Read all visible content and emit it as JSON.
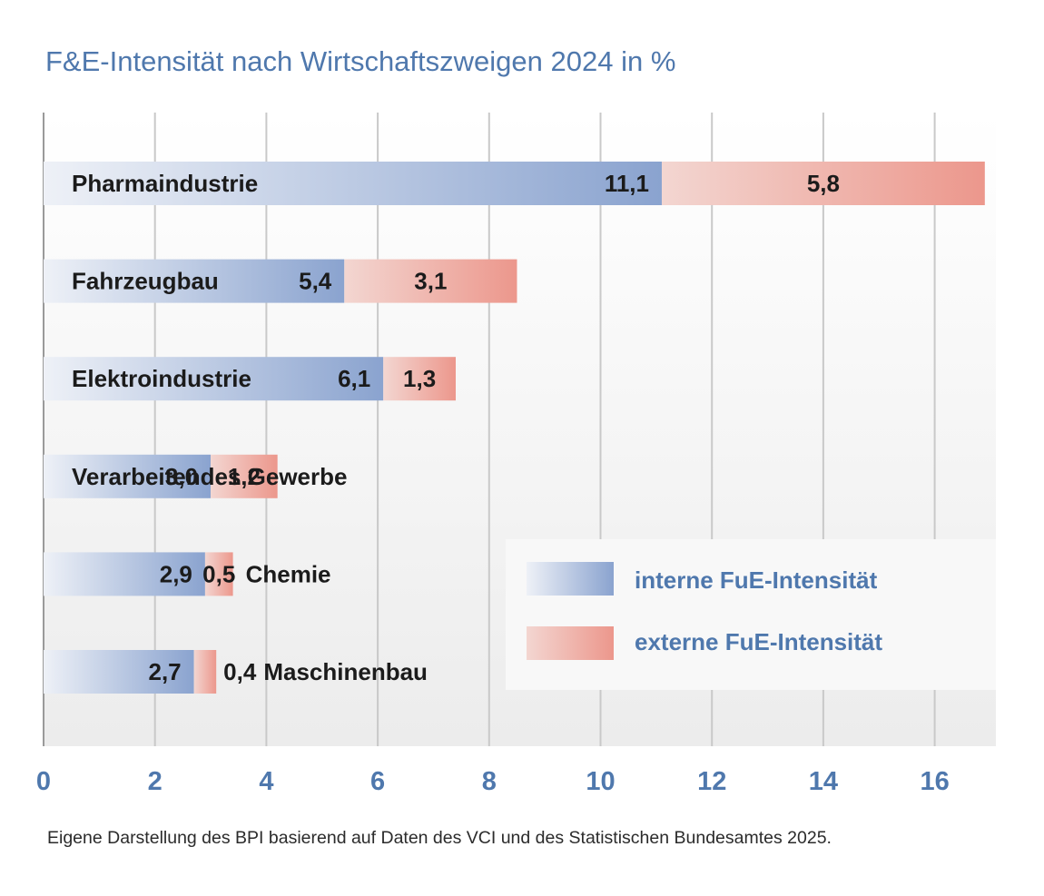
{
  "chart_data": {
    "type": "bar",
    "orientation": "horizontal",
    "stacked": true,
    "title": "F&E-Intensität nach Wirtschaftszweigen 2024 in %",
    "xlabel": "",
    "ylabel": "",
    "xlim": [
      0,
      17.1
    ],
    "xticks": [
      0,
      2,
      4,
      6,
      8,
      10,
      12,
      14,
      16
    ],
    "xtick_labels": [
      "0",
      "2",
      "4",
      "6",
      "8",
      "10",
      "12",
      "14",
      "16"
    ],
    "grid": "vertical",
    "legend_position": "bottom-right",
    "categories": [
      "Pharmaindustrie",
      "Fahrzeugbau",
      "Elektroindustrie",
      "Verarbeitendes Gewerbe",
      "Chemie",
      "Maschinenbau"
    ],
    "series": [
      {
        "name": "interne FuE-Intensität",
        "values": [
          11.1,
          5.4,
          6.1,
          3.0,
          2.9,
          2.7
        ],
        "labels": [
          "11,1",
          "5,4",
          "6,1",
          "3,0",
          "2,9",
          "2,7"
        ],
        "color": "#8aa3cf"
      },
      {
        "name": "externe FuE-Intensität",
        "values": [
          5.8,
          3.1,
          1.3,
          1.2,
          0.5,
          0.4
        ],
        "labels": [
          "5,8",
          "3,1",
          "1,3",
          "1,2",
          "0,5",
          "0,4"
        ],
        "color": "#ec978c"
      }
    ]
  },
  "source_note": "Eigene Darstellung des BPI basierend auf Daten des VCI und des Statistischen Bundesamtes 2025.",
  "colors": {
    "title": "#4f78ad",
    "axis_labels": "#4f78ad",
    "legend_text": "#4f78ad",
    "internal_start": "#eef1f7",
    "internal_end": "#8aa3cf",
    "external_start": "#f3d6d1",
    "external_end": "#ec978c",
    "grid": "#c9c9c9"
  }
}
